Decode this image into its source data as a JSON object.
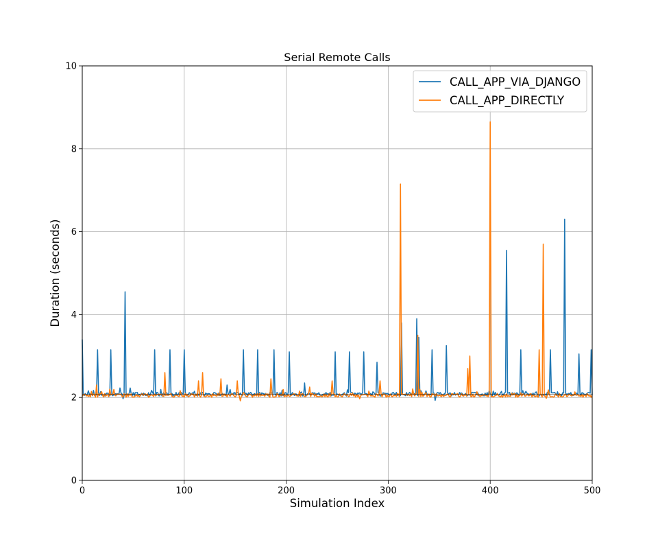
{
  "chart_data": {
    "type": "line",
    "title": "Serial Remote Calls",
    "xlabel": "Simulation Index",
    "ylabel": "Duration (seconds)",
    "xlim": [
      0,
      500
    ],
    "ylim": [
      0,
      10
    ],
    "xticks": [
      0,
      100,
      200,
      300,
      400,
      500
    ],
    "yticks": [
      0,
      2,
      4,
      6,
      8,
      10
    ],
    "grid": true,
    "legend_position": "top-right",
    "baseline": 2.07,
    "series": [
      {
        "name": "CALL_APP_VIA_DJANGO",
        "color": "#1f77b4",
        "baseline": 2.08,
        "points": [
          [
            0,
            3.4
          ],
          [
            2,
            2.05
          ],
          [
            15,
            3.15
          ],
          [
            28,
            3.15
          ],
          [
            42,
            4.55
          ],
          [
            71,
            3.15
          ],
          [
            86,
            3.15
          ],
          [
            100,
            3.15
          ],
          [
            142,
            2.3
          ],
          [
            158,
            3.15
          ],
          [
            172,
            3.15
          ],
          [
            188,
            3.15
          ],
          [
            203,
            3.1
          ],
          [
            218,
            2.35
          ],
          [
            248,
            3.1
          ],
          [
            262,
            3.1
          ],
          [
            276,
            3.1
          ],
          [
            289,
            2.85
          ],
          [
            313,
            3.8
          ],
          [
            328,
            3.9
          ],
          [
            330,
            3.45
          ],
          [
            343,
            3.15
          ],
          [
            357,
            3.25
          ],
          [
            416,
            5.55
          ],
          [
            430,
            3.15
          ],
          [
            459,
            3.15
          ],
          [
            473,
            6.3
          ],
          [
            487,
            3.05
          ],
          [
            499,
            3.15
          ]
        ],
        "dips": [
          [
            40,
            1.97
          ],
          [
            346,
            1.93
          ]
        ]
      },
      {
        "name": "CALL_APP_DIRECTLY",
        "color": "#ff7f0e",
        "baseline": 2.05,
        "points": [
          [
            14,
            2.3
          ],
          [
            27,
            2.2
          ],
          [
            81,
            2.6
          ],
          [
            114,
            2.4
          ],
          [
            118,
            2.6
          ],
          [
            136,
            2.45
          ],
          [
            152,
            2.4
          ],
          [
            185,
            2.45
          ],
          [
            223,
            2.25
          ],
          [
            245,
            2.4
          ],
          [
            292,
            2.4
          ],
          [
            312,
            7.15
          ],
          [
            329,
            3.5
          ],
          [
            378,
            2.7
          ],
          [
            380,
            3.0
          ],
          [
            399,
            2.35
          ],
          [
            400,
            8.65
          ],
          [
            448,
            3.15
          ],
          [
            452,
            5.7
          ]
        ],
        "dips": [
          [
            155,
            1.92
          ],
          [
            272,
            1.97
          ],
          [
            455,
            1.98
          ]
        ]
      }
    ]
  }
}
